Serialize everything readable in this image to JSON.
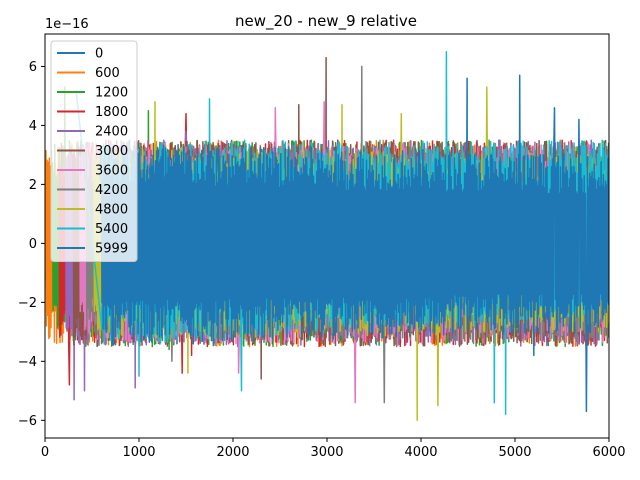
{
  "chart_data": {
    "type": "line",
    "title": "new_20 - new_9 relative",
    "xlabel": "",
    "ylabel": "",
    "y_scale_label": "1e−16",
    "xlim": [
      0,
      6000
    ],
    "ylim": [
      -6.6e-16,
      7.1e-16
    ],
    "x_ticks": [
      0,
      1000,
      2000,
      3000,
      4000,
      5000,
      6000
    ],
    "x_tick_labels": [
      "0",
      "1000",
      "2000",
      "3000",
      "4000",
      "5000",
      "6000"
    ],
    "y_ticks": [
      -6e-16,
      -4e-16,
      -2e-16,
      0,
      2e-16,
      4e-16,
      6e-16
    ],
    "y_tick_labels": [
      "−6",
      "−4",
      "−2",
      "0",
      "2",
      "4",
      "6"
    ],
    "grid": false,
    "legend_position": "upper-left",
    "series": [
      {
        "name": "0",
        "color": "#1f77b4",
        "start": 0,
        "band_lo": [
          -1.8e-16,
          -2.4e-16
        ],
        "band_hi": [
          2e-17,
          2e-17
        ],
        "peaks": []
      },
      {
        "name": "600",
        "color": "#ff7f0e",
        "start": 10,
        "band_lo": [
          -3.5e-16,
          -3.5e-16
        ],
        "band_hi": [
          3.5e-16,
          3.5e-16
        ],
        "peaks": []
      },
      {
        "name": "1200",
        "color": "#2ca02c",
        "start": 80,
        "band_lo": [
          -3.5e-16,
          -3.5e-16
        ],
        "band_hi": [
          3.5e-16,
          3.5e-16
        ],
        "peaks": [
          [
            210,
            5.3e-16
          ],
          [
            1100,
            4.5e-16
          ],
          [
            1320,
            -3.6e-16
          ]
        ]
      },
      {
        "name": "1800",
        "color": "#d62728",
        "start": 150,
        "band_lo": [
          -3.5e-16,
          -3.5e-16
        ],
        "band_hi": [
          3.5e-16,
          3.5e-16
        ],
        "peaks": [
          [
            260,
            -4.8e-16
          ],
          [
            1460,
            -4.4e-16
          ],
          [
            1500,
            4.4e-16
          ],
          [
            1560,
            -3.8e-16
          ]
        ]
      },
      {
        "name": "2400",
        "color": "#9467bd",
        "start": 220,
        "band_lo": [
          -3.5e-16,
          -3.5e-16
        ],
        "band_hi": [
          3.5e-16,
          3.5e-16
        ],
        "peaks": [
          [
            310,
            -5.3e-16
          ],
          [
            420,
            -5e-16
          ],
          [
            960,
            -4.9e-16
          ],
          [
            1500,
            3.8e-16
          ]
        ]
      },
      {
        "name": "3000",
        "color": "#8c564b",
        "start": 300,
        "band_lo": [
          -3.5e-16,
          -3.5e-16
        ],
        "band_hi": [
          3.5e-16,
          3.5e-16
        ],
        "peaks": [
          [
            2990,
            6.3e-16
          ],
          [
            2300,
            -4.6e-16
          ],
          [
            2700,
            4.7e-16
          ]
        ]
      },
      {
        "name": "3600",
        "color": "#e377c2",
        "start": 370,
        "band_lo": [
          -3.4e-16,
          -3.4e-16
        ],
        "band_hi": [
          3.4e-16,
          3.4e-16
        ],
        "peaks": [
          [
            2970,
            4.8e-16
          ],
          [
            3300,
            -5.4e-16
          ],
          [
            2060,
            -4.4e-16
          ],
          [
            2450,
            4.6e-16
          ]
        ]
      },
      {
        "name": "4200",
        "color": "#7f7f7f",
        "start": 440,
        "band_lo": [
          -3.3e-16,
          -3.3e-16
        ],
        "band_hi": [
          3.3e-16,
          3.3e-16
        ],
        "peaks": [
          [
            3370,
            6e-16
          ],
          [
            3610,
            -5.4e-16
          ],
          [
            1350,
            -4e-16
          ]
        ]
      },
      {
        "name": "4800",
        "color": "#bcbd22",
        "start": 520,
        "band_lo": [
          -3.3e-16,
          -3e-16
        ],
        "band_hi": [
          3.3e-16,
          3e-16
        ],
        "peaks": [
          [
            3960,
            -6e-16
          ],
          [
            4180,
            -5.5e-16
          ],
          [
            3160,
            4.7e-16
          ],
          [
            3790,
            4.4e-16
          ],
          [
            1170,
            4.8e-16
          ],
          [
            4700,
            5.3e-16
          ],
          [
            1520,
            -4.4e-16
          ]
        ]
      },
      {
        "name": "5400",
        "color": "#17becf",
        "start": 600,
        "band_lo": [
          -3.5e-16,
          -2.5e-16
        ],
        "band_hi": [
          3.5e-16,
          3.5e-16
        ],
        "peaks": [
          [
            4270,
            6.5e-16
          ],
          [
            4900,
            -5.8e-16
          ],
          [
            1750,
            4.9e-16
          ],
          [
            2090,
            -5e-16
          ],
          [
            4780,
            -5.4e-16
          ],
          [
            330,
            5.2e-16
          ],
          [
            1000,
            -4.5e-16
          ]
        ]
      },
      {
        "name": "5999",
        "color": "#1f77b4",
        "start": 600,
        "band_lo": [
          -3.5e-16,
          -3e-16
        ],
        "band_hi": [
          3.5e-16,
          3e-16
        ],
        "peaks": [
          [
            4490,
            5.6e-16
          ],
          [
            5050,
            5.7e-16
          ],
          [
            5760,
            -5.7e-16
          ],
          [
            5200,
            -3.8e-16
          ],
          [
            5420,
            4.6e-16
          ],
          [
            5680,
            4.2e-16
          ]
        ]
      }
    ]
  }
}
